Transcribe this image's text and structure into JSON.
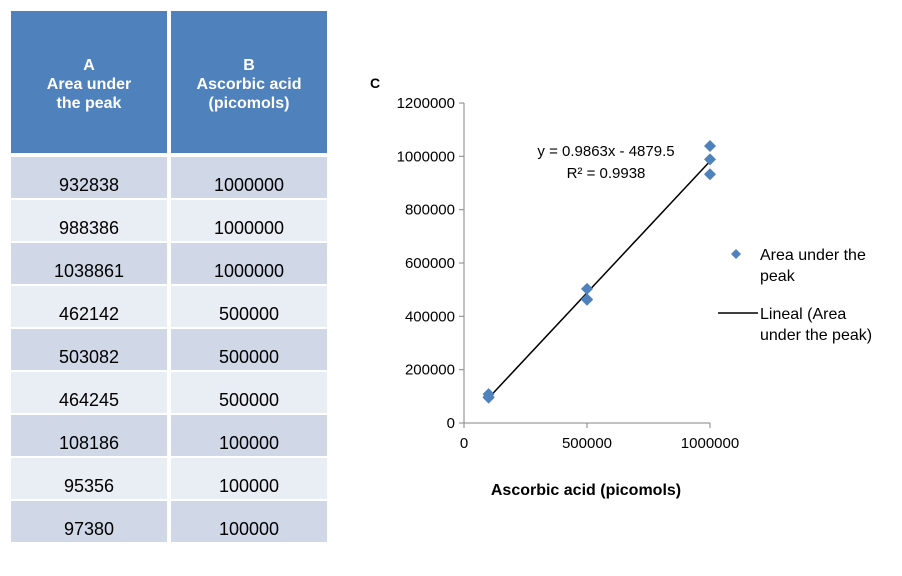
{
  "table": {
    "header_color": "#4f81bd",
    "row_colors": [
      "#d0d8e8",
      "#e9edf4"
    ],
    "columns": [
      {
        "letter": "A",
        "lines": [
          "Area under",
          "the peak"
        ]
      },
      {
        "letter": "B",
        "lines": [
          "Ascorbic acid",
          "(picomols)"
        ]
      }
    ],
    "rows": [
      [
        "932838",
        "1000000"
      ],
      [
        "988386",
        "1000000"
      ],
      [
        "1038861",
        "1000000"
      ],
      [
        "462142",
        "500000"
      ],
      [
        "503082",
        "500000"
      ],
      [
        "464245",
        "500000"
      ],
      [
        "108186",
        "100000"
      ],
      [
        "95356",
        "100000"
      ],
      [
        "97380",
        "100000"
      ]
    ]
  },
  "chart_data": {
    "type": "scatter",
    "panel_label": "C",
    "xlabel": "Ascorbic acid (picomols)",
    "ylabel": "",
    "xlim": [
      0,
      1000000
    ],
    "ylim": [
      0,
      1200000
    ],
    "x_ticks": [
      "0",
      "500000",
      "1000000"
    ],
    "y_ticks": [
      "0",
      "200000",
      "400000",
      "600000",
      "800000",
      "1000000",
      "1200000"
    ],
    "grid": false,
    "legend_position": "right",
    "series": [
      {
        "name": "Area under the peak",
        "marker": "diamond",
        "color": "#4f81bd",
        "points": [
          [
            1000000,
            932838
          ],
          [
            1000000,
            988386
          ],
          [
            1000000,
            1038861
          ],
          [
            500000,
            462142
          ],
          [
            500000,
            503082
          ],
          [
            500000,
            464245
          ],
          [
            100000,
            108186
          ],
          [
            100000,
            95356
          ],
          [
            100000,
            97380
          ]
        ]
      }
    ],
    "trendline": {
      "name": "Lineal (Area under the peak)",
      "slope": 0.9863,
      "intercept": -4879.5,
      "x_range": [
        100000,
        1000000
      ],
      "color": "#000000",
      "equation": "y = 0.9863x - 4879.5",
      "r2": "R² = 0.9938"
    },
    "legend": [
      {
        "kind": "marker",
        "label_lines": [
          "Area under the",
          "peak"
        ]
      },
      {
        "kind": "line",
        "label_lines": [
          "Lineal (Area",
          "under the peak)"
        ]
      }
    ]
  }
}
